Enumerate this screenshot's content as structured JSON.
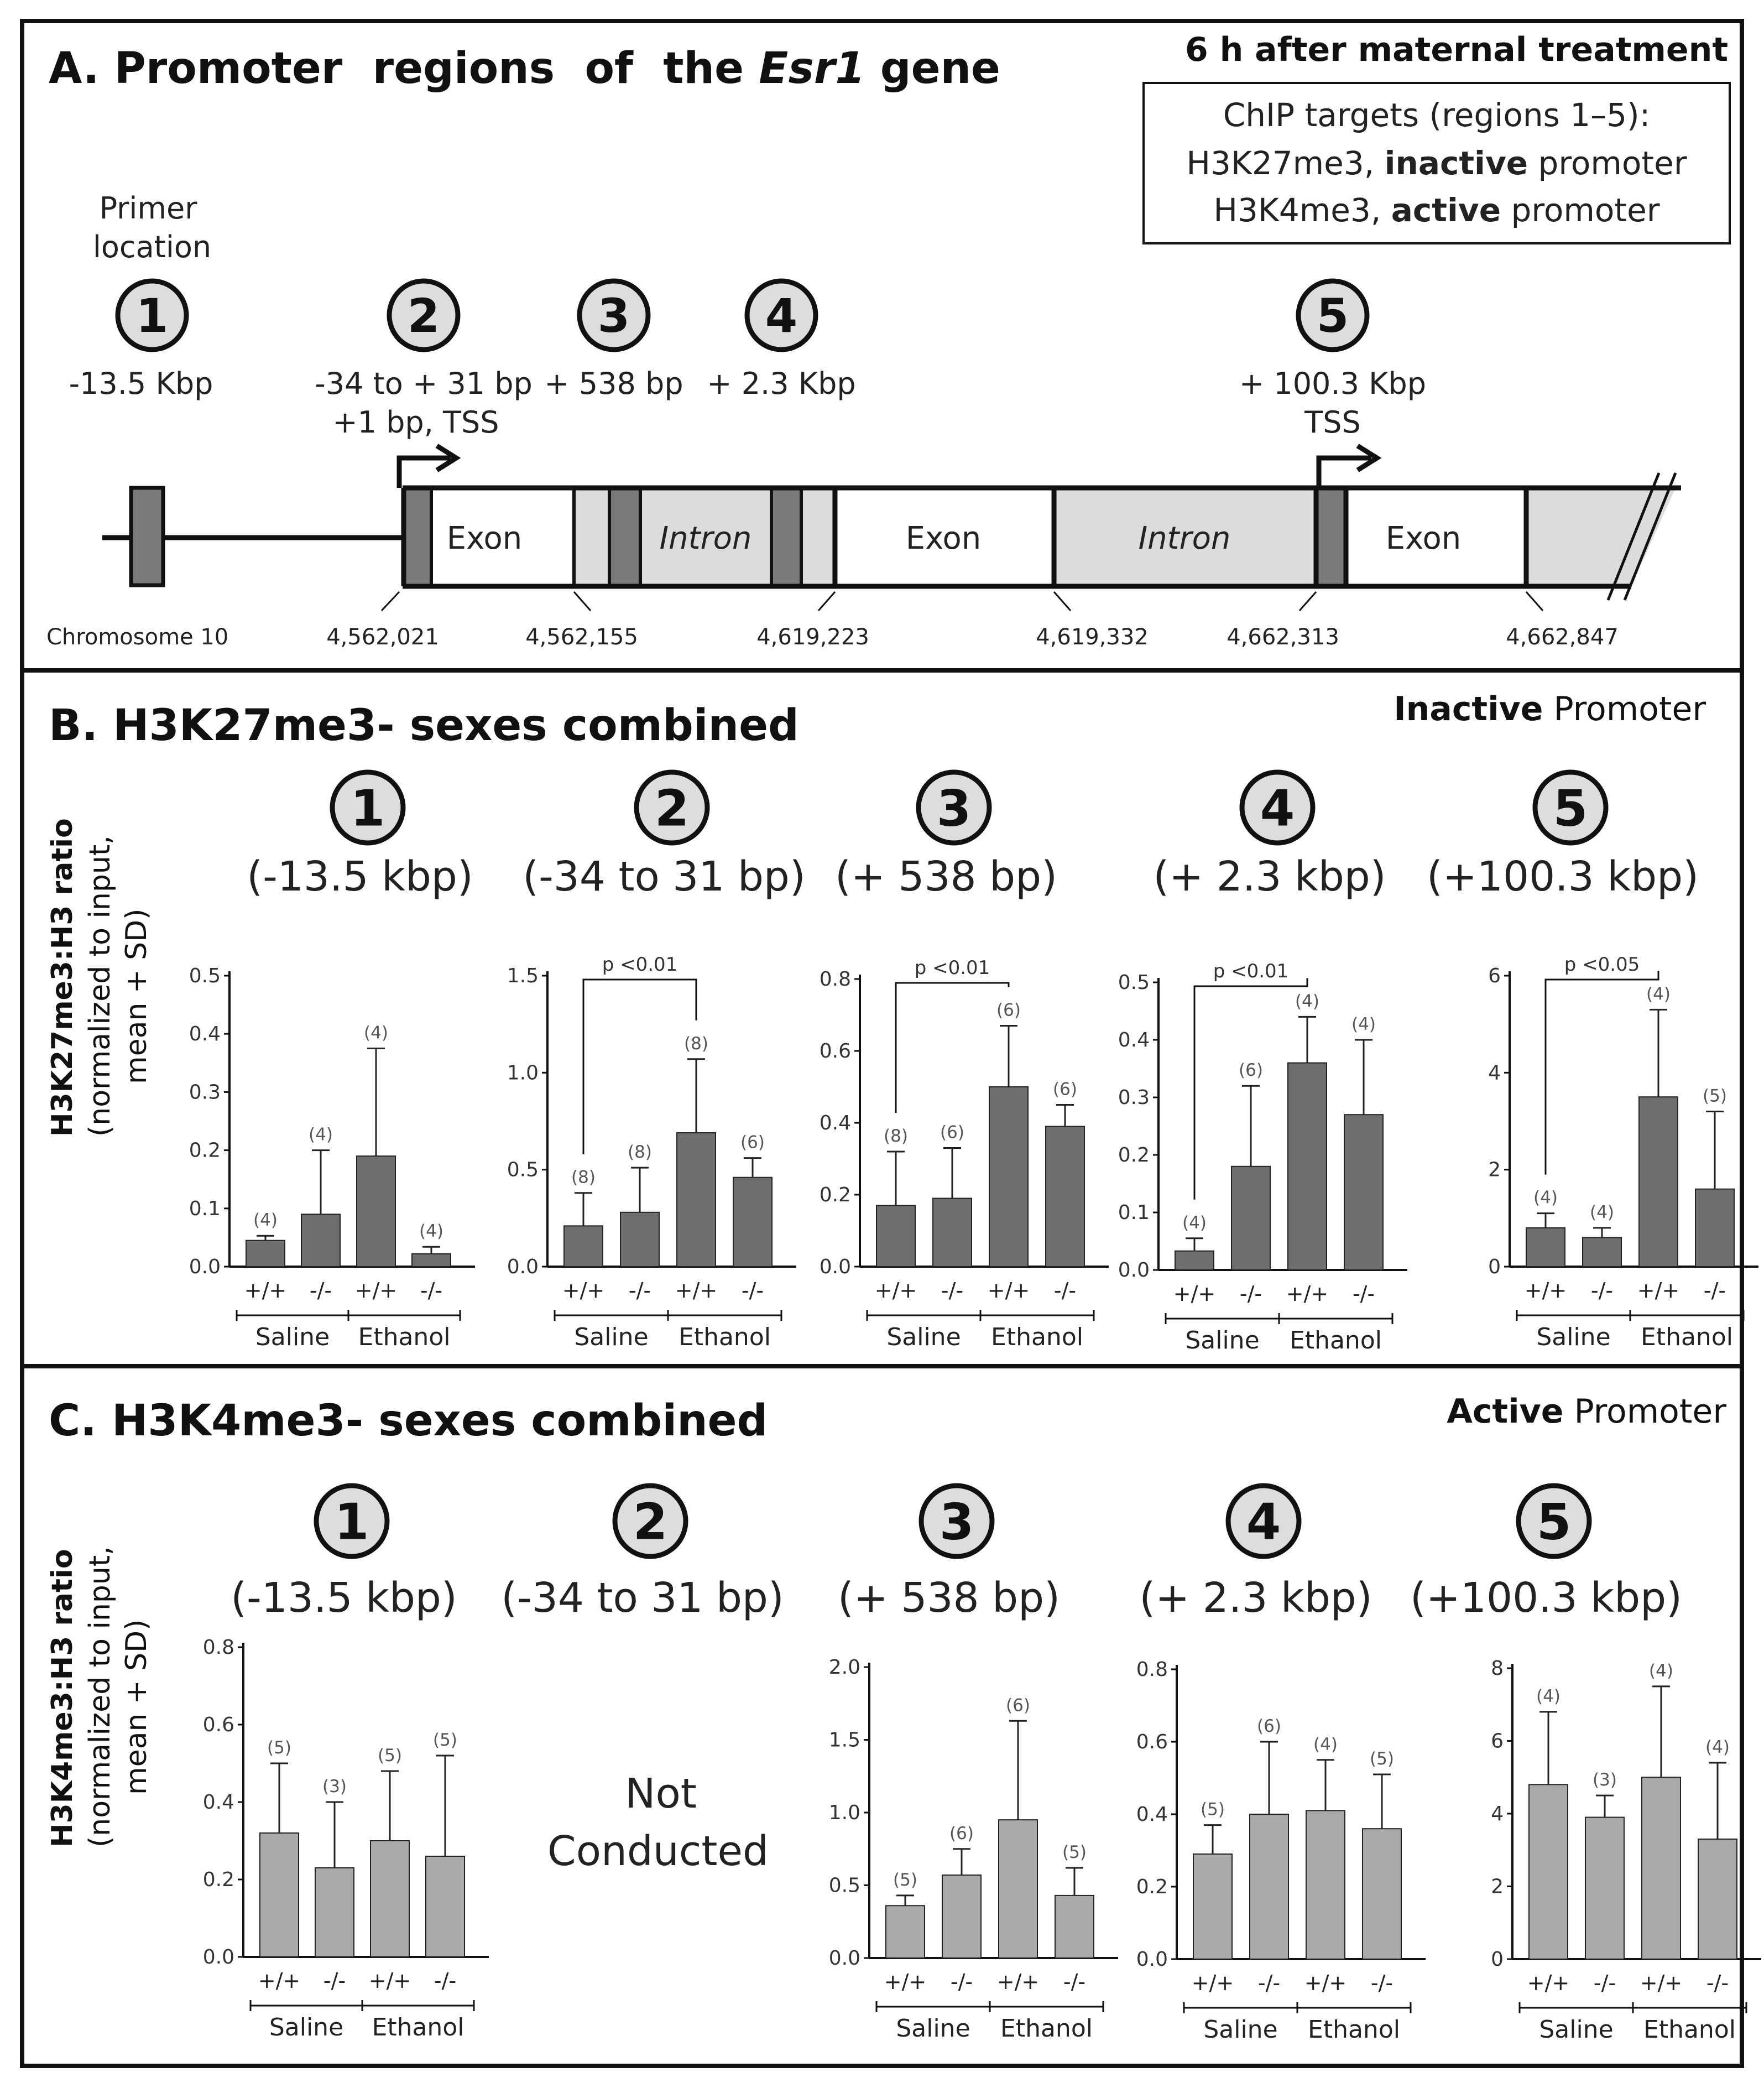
{
  "panelA": {
    "title_prefix": "A. Promoter  regions  of  the ",
    "title_gene": "Esr1",
    "title_suffix": " gene",
    "timing_label": "6 h after maternal treatment",
    "chip_box": {
      "line1": "ChIP targets (regions 1–5):",
      "line2_a": "H3K27me3, ",
      "line2_b": "inactive",
      "line2_c": " promoter",
      "line3_a": "H3K4me3, ",
      "line3_b": "active",
      "line3_c": " promoter"
    },
    "primer_label_1": "Primer",
    "primer_label_2": "location",
    "regions": [
      {
        "num": "1",
        "pos": "-13.5 Kbp",
        "pos2": ""
      },
      {
        "num": "2",
        "pos": "-34 to + 31 bp",
        "pos2": "+1 bp, TSS"
      },
      {
        "num": "3",
        "pos": "+ 538 bp",
        "pos2": ""
      },
      {
        "num": "4",
        "pos": "+ 2.3 Kbp",
        "pos2": ""
      },
      {
        "num": "5",
        "pos": "+ 100.3 Kbp",
        "pos2": "TSS"
      }
    ],
    "gene_labels": {
      "exon": "Exon",
      "intron": "Intron"
    },
    "chromosome": "Chromosome 10",
    "coords": [
      "4,562,021",
      "4,562,155",
      "4,619,223",
      "4,619,332",
      "4,662,313",
      "4,662,847"
    ]
  },
  "panelB": {
    "title": "B. H3K27me3- sexes combined",
    "promoter_bold": "Inactive",
    "promoter_rest": " Promoter",
    "ylabel_bold": "H3K27me3:H3 ratio",
    "ylabel_line2": "(normalized to input,",
    "ylabel_line3": "mean + SD)"
  },
  "panelC": {
    "title": "C. H3K4me3- sexes combined",
    "promoter_bold": "Active",
    "promoter_rest": " Promoter",
    "ylabel_bold": "H3K4me3:H3 ratio",
    "ylabel_line2": "(normalized to input,",
    "ylabel_line3": "mean + SD)",
    "not_conducted_1": "Not",
    "not_conducted_2": "Conducted"
  },
  "colors": {
    "bar_b": "#6e6e6e",
    "bar_c": "#a9a9a9",
    "intron_fill": "#dcdcdc",
    "exon_fill": "#ffffff",
    "primer_fill": "#7a7a7a",
    "circle_fill": "#dddddd"
  },
  "chart_data": [
    {
      "type": "bar",
      "panel": "B",
      "region": "1",
      "subtitle": "(-13.5 kbp)",
      "categories": [
        "+/+",
        "-/-",
        "+/+",
        "-/-"
      ],
      "groups": [
        "Saline",
        "Ethanol"
      ],
      "values": [
        0.045,
        0.09,
        0.19,
        0.022
      ],
      "errors": [
        0.008,
        0.11,
        0.185,
        0.012
      ],
      "n": [
        "(4)",
        "(4)",
        "(4)",
        "(4)"
      ],
      "ylim": [
        0,
        0.5
      ],
      "yticks": [
        0.0,
        0.1,
        0.2,
        0.3,
        0.4,
        0.5
      ],
      "tick_labels": [
        "0.0",
        "0.1",
        "0.2",
        "0.3",
        "0.4",
        "0.5"
      ],
      "significance": null
    },
    {
      "type": "bar",
      "panel": "B",
      "region": "2",
      "subtitle": "(-34 to 31 bp)",
      "categories": [
        "+/+",
        "-/-",
        "+/+",
        "-/-"
      ],
      "groups": [
        "Saline",
        "Ethanol"
      ],
      "values": [
        0.21,
        0.28,
        0.69,
        0.46
      ],
      "errors": [
        0.17,
        0.23,
        0.38,
        0.1
      ],
      "n": [
        "(8)",
        "(8)",
        "(8)",
        "(6)"
      ],
      "ylim": [
        0,
        1.5
      ],
      "yticks": [
        0.0,
        0.5,
        1.0,
        1.5
      ],
      "tick_labels": [
        "0.0",
        "0.5",
        "1.0",
        "1.5"
      ],
      "significance": {
        "from": 0,
        "to": 2,
        "label": "p <0.01"
      }
    },
    {
      "type": "bar",
      "panel": "B",
      "region": "3",
      "subtitle": "(+ 538 bp)",
      "categories": [
        "+/+",
        "-/-",
        "+/+",
        "-/-"
      ],
      "groups": [
        "Saline",
        "Ethanol"
      ],
      "values": [
        0.17,
        0.19,
        0.5,
        0.39
      ],
      "errors": [
        0.15,
        0.14,
        0.17,
        0.06
      ],
      "n": [
        "(8)",
        "(6)",
        "(6)",
        "(6)"
      ],
      "ylim": [
        0,
        0.8
      ],
      "yticks": [
        0.0,
        0.2,
        0.4,
        0.6,
        0.8
      ],
      "tick_labels": [
        "0.0",
        "0.2",
        "0.4",
        "0.6",
        "0.8"
      ],
      "significance": {
        "from": 0,
        "to": 2,
        "label": "p <0.01"
      }
    },
    {
      "type": "bar",
      "panel": "B",
      "region": "4",
      "subtitle": "(+ 2.3 kbp)",
      "categories": [
        "+/+",
        "-/-",
        "+/+",
        "-/-"
      ],
      "groups": [
        "Saline",
        "Ethanol"
      ],
      "values": [
        0.033,
        0.18,
        0.36,
        0.27
      ],
      "errors": [
        0.022,
        0.14,
        0.08,
        0.13
      ],
      "n": [
        "(4)",
        "(6)",
        "(4)",
        "(4)"
      ],
      "ylim": [
        0,
        0.5
      ],
      "yticks": [
        0.0,
        0.1,
        0.2,
        0.3,
        0.4,
        0.5
      ],
      "tick_labels": [
        "0.0",
        "0.1",
        "0.2",
        "0.3",
        "0.4",
        "0.5"
      ],
      "significance": {
        "from": 0,
        "to": 2,
        "label": "p <0.01"
      }
    },
    {
      "type": "bar",
      "panel": "B",
      "region": "5",
      "subtitle": "(+100.3 kbp)",
      "categories": [
        "+/+",
        "-/-",
        "+/+",
        "-/-"
      ],
      "groups": [
        "Saline",
        "Ethanol"
      ],
      "values": [
        0.8,
        0.6,
        3.5,
        1.6
      ],
      "errors": [
        0.3,
        0.2,
        1.8,
        1.6
      ],
      "n": [
        "(4)",
        "(4)",
        "(4)",
        "(5)"
      ],
      "ylim": [
        0,
        6
      ],
      "yticks": [
        0,
        2,
        4,
        6
      ],
      "tick_labels": [
        "0",
        "2",
        "4",
        "6"
      ],
      "significance": {
        "from": 0,
        "to": 2,
        "label": "p <0.05"
      }
    },
    {
      "type": "bar",
      "panel": "C",
      "region": "1",
      "subtitle": "(-13.5 kbp)",
      "categories": [
        "+/+",
        "-/-",
        "+/+",
        "-/-"
      ],
      "groups": [
        "Saline",
        "Ethanol"
      ],
      "values": [
        0.32,
        0.23,
        0.3,
        0.26
      ],
      "errors": [
        0.18,
        0.17,
        0.18,
        0.26
      ],
      "n": [
        "(5)",
        "(3)",
        "(5)",
        "(5)"
      ],
      "ylim": [
        0,
        0.8
      ],
      "yticks": [
        0.0,
        0.2,
        0.4,
        0.6,
        0.8
      ],
      "tick_labels": [
        "0.0",
        "0.2",
        "0.4",
        "0.6",
        "0.8"
      ],
      "significance": null
    },
    {
      "type": "bar",
      "panel": "C",
      "region": "2",
      "subtitle": "(-34 to 31 bp)",
      "not_conducted": true
    },
    {
      "type": "bar",
      "panel": "C",
      "region": "3",
      "subtitle": "(+ 538 bp)",
      "categories": [
        "+/+",
        "-/-",
        "+/+",
        "-/-"
      ],
      "groups": [
        "Saline",
        "Ethanol"
      ],
      "values": [
        0.36,
        0.57,
        0.95,
        0.43
      ],
      "errors": [
        0.07,
        0.18,
        0.68,
        0.19
      ],
      "n": [
        "(5)",
        "(6)",
        "(6)",
        "(5)"
      ],
      "ylim": [
        0,
        2.0
      ],
      "yticks": [
        0.0,
        0.5,
        1.0,
        1.5,
        2.0
      ],
      "tick_labels": [
        "0.0",
        "0.5",
        "1.0",
        "1.5",
        "2.0"
      ],
      "significance": null
    },
    {
      "type": "bar",
      "panel": "C",
      "region": "4",
      "subtitle": "(+ 2.3 kbp)",
      "categories": [
        "+/+",
        "-/-",
        "+/+",
        "-/-"
      ],
      "groups": [
        "Saline",
        "Ethanol"
      ],
      "values": [
        0.29,
        0.4,
        0.41,
        0.36
      ],
      "errors": [
        0.08,
        0.2,
        0.14,
        0.15
      ],
      "n": [
        "(5)",
        "(6)",
        "(4)",
        "(5)"
      ],
      "ylim": [
        0,
        0.8
      ],
      "yticks": [
        0.0,
        0.2,
        0.4,
        0.6,
        0.8
      ],
      "tick_labels": [
        "0.0",
        "0.2",
        "0.4",
        "0.6",
        "0.8"
      ],
      "significance": null
    },
    {
      "type": "bar",
      "panel": "C",
      "region": "5",
      "subtitle": "(+100.3 kbp)",
      "categories": [
        "+/+",
        "-/-",
        "+/+",
        "-/-"
      ],
      "groups": [
        "Saline",
        "Ethanol"
      ],
      "values": [
        4.8,
        3.9,
        5.0,
        3.3
      ],
      "errors": [
        2.0,
        0.6,
        2.5,
        2.1
      ],
      "n": [
        "(4)",
        "(3)",
        "(4)",
        "(4)"
      ],
      "ylim": [
        0,
        8
      ],
      "yticks": [
        0,
        2,
        4,
        6,
        8
      ],
      "tick_labels": [
        "0",
        "2",
        "4",
        "6",
        "8"
      ],
      "significance": null
    }
  ]
}
